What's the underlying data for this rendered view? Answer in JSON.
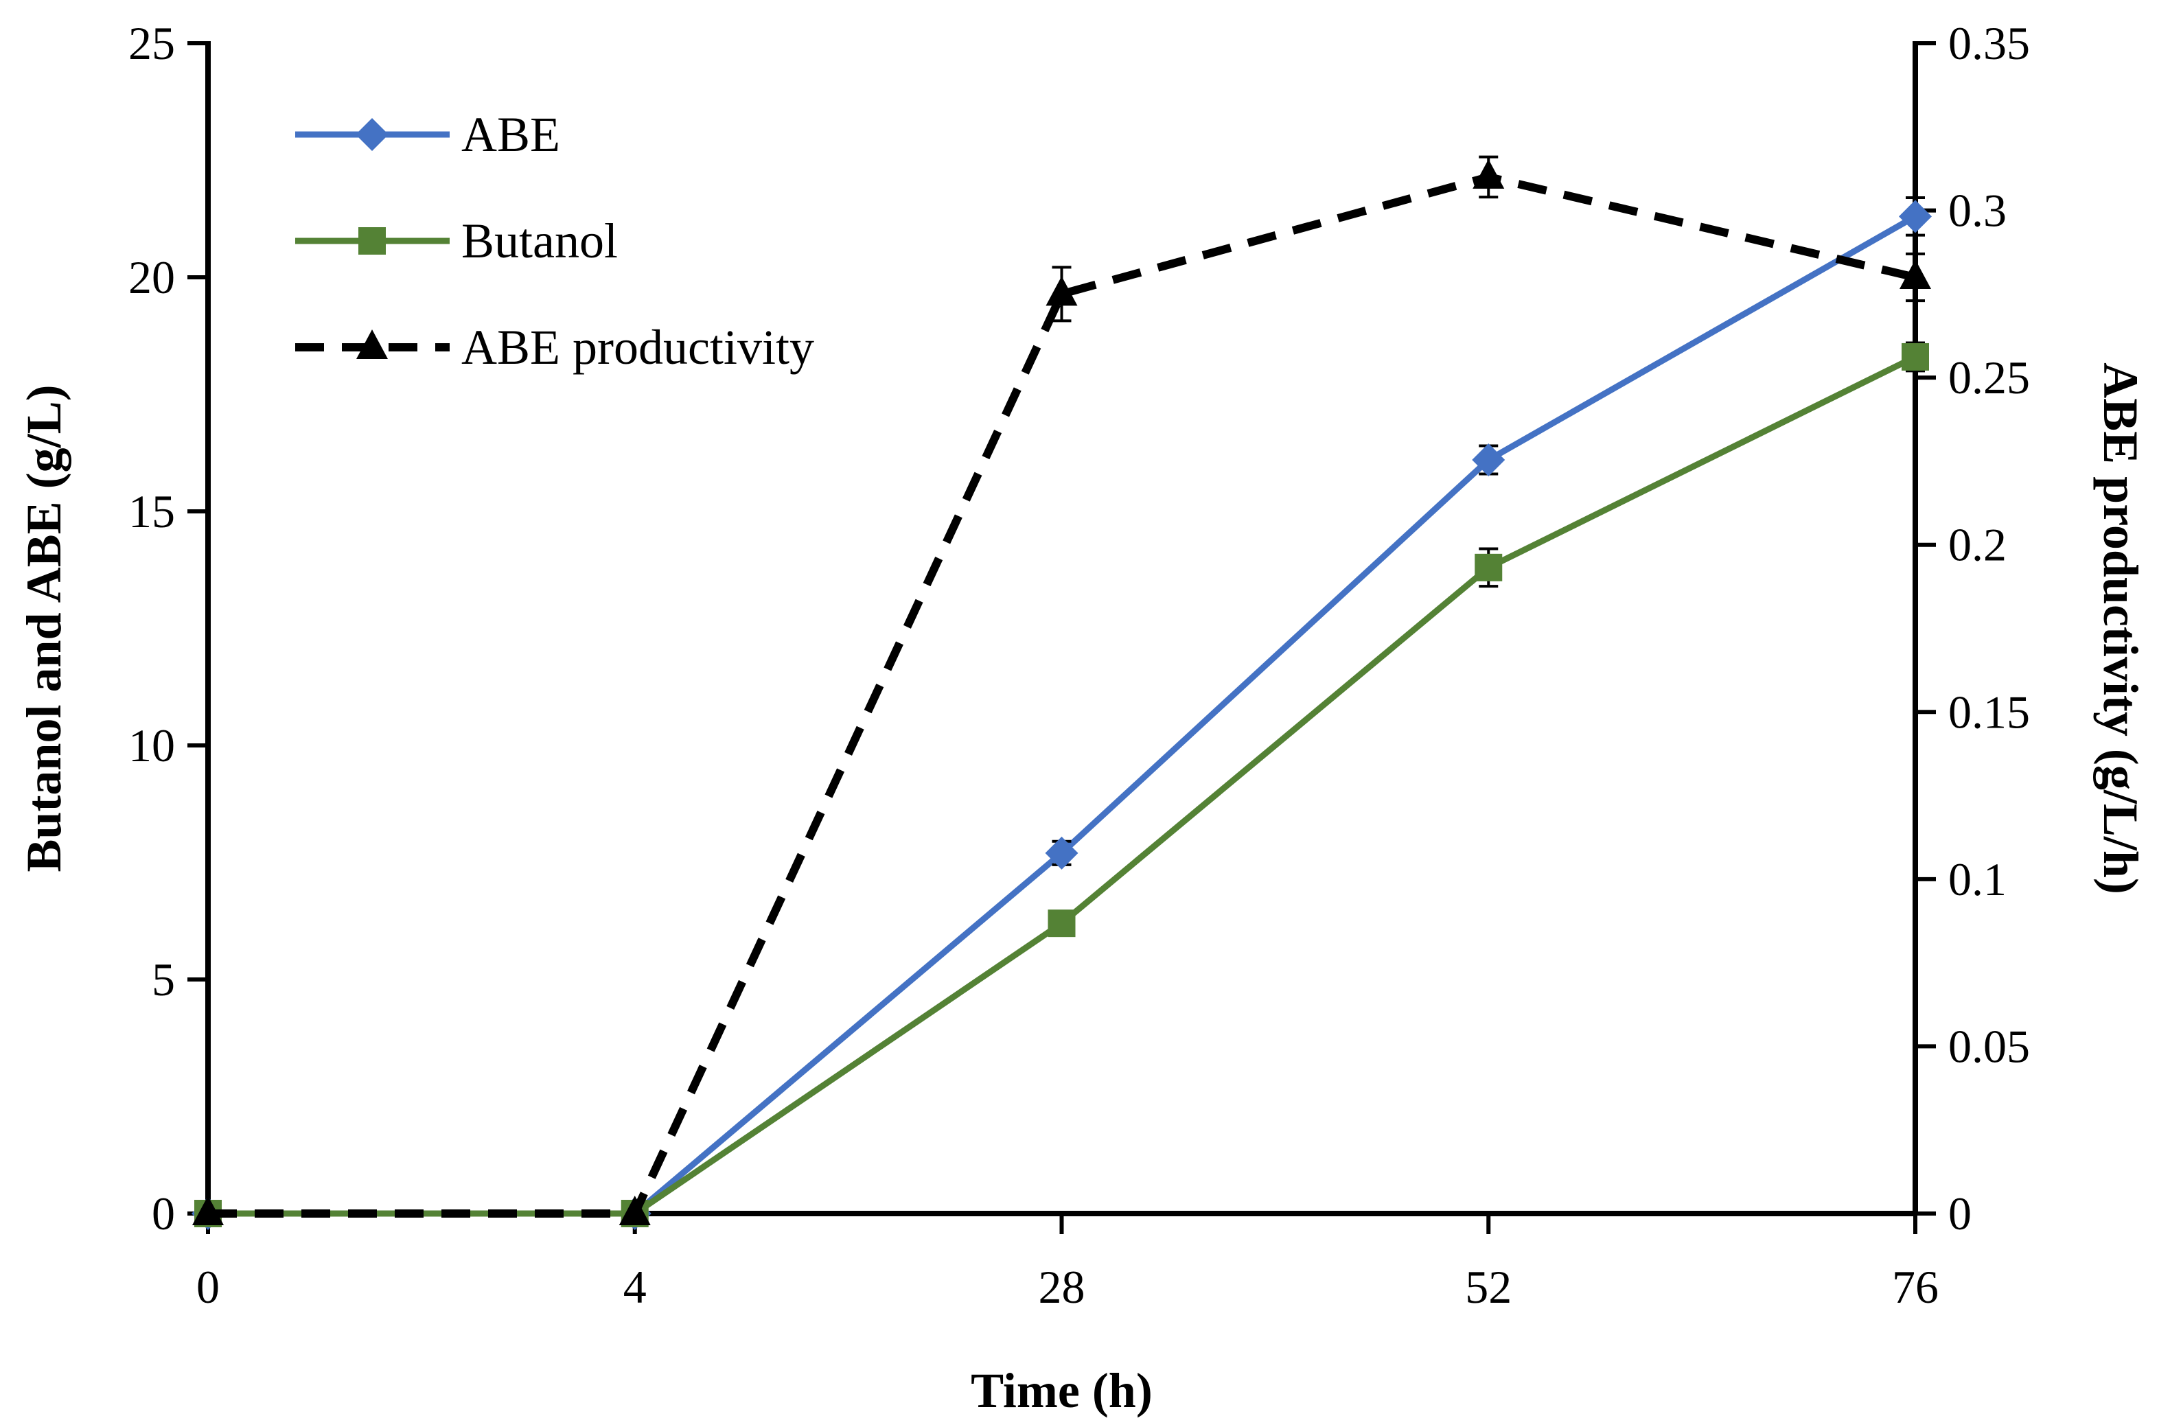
{
  "chart_data": {
    "type": "line",
    "title": "",
    "categories": [
      "0",
      "4",
      "28",
      "52",
      "76"
    ],
    "xlabel": "Time (h)",
    "ylabel": "Butanol and ABE (g/L)",
    "y2label": "ABE productivity (g/L/h)",
    "ylim": [
      0,
      25
    ],
    "y2lim": [
      0,
      0.35
    ],
    "yticks": [
      "0",
      "5",
      "10",
      "15",
      "20",
      "25"
    ],
    "y2ticks": [
      "0",
      "0.05",
      "0.1",
      "0.15",
      "0.2",
      "0.25",
      "0.3",
      "0.35"
    ],
    "grid": false,
    "legend_position": "top-left",
    "series": [
      {
        "name": "ABE",
        "axis": "left",
        "color": "#4472C4",
        "marker": "diamond",
        "dash": "solid",
        "values": [
          0,
          0,
          7.7,
          16.1,
          21.3
        ],
        "errors": [
          0,
          0,
          0.25,
          0.3,
          0.4
        ]
      },
      {
        "name": "Butanol",
        "axis": "left",
        "color": "#548235",
        "marker": "square",
        "dash": "solid",
        "values": [
          0,
          0,
          6.2,
          13.8,
          18.3
        ],
        "errors": [
          0,
          0,
          0.15,
          0.4,
          0.3
        ]
      },
      {
        "name": "ABE productivity",
        "axis": "right",
        "color": "#000000",
        "marker": "triangle",
        "dash": "dashed",
        "values": [
          0,
          0,
          0.275,
          0.31,
          0.28
        ],
        "errors": [
          0,
          0,
          0.008,
          0.006,
          0.007
        ]
      }
    ]
  }
}
